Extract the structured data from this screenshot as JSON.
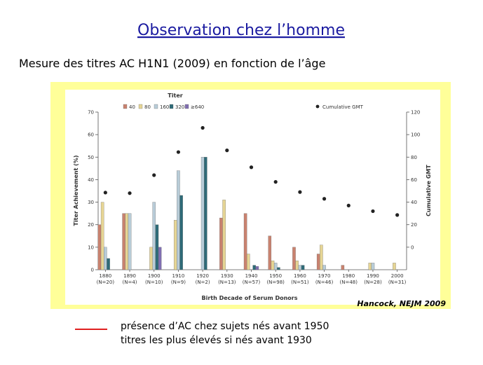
{
  "slide": {
    "title": "Observation chez l’homme",
    "subtitle": "Mesure des titres AC  H1N1 (2009) en fonction de l’âge",
    "citation": "Hancock, NEJM 2009",
    "notes": [
      "présence d’AC chez sujets nés avant 1950",
      "titres  les plus élevés si nés avant 1930"
    ]
  },
  "chart_data": {
    "type": "bar",
    "legend_title": "Titer",
    "x_label": "Birth Decade of Serum Donors",
    "y_label": "Titer Achievement (%)",
    "y2_label": "Cumulative GMT",
    "categories": [
      "1880",
      "1890",
      "1900",
      "1910",
      "1920",
      "1930",
      "1940",
      "1950",
      "1960",
      "1970",
      "1980",
      "1990",
      "2000"
    ],
    "category_counts": [
      "(N=20)",
      "(N=4)",
      "(N=10)",
      "(N=9)",
      "(N=2)",
      "(N=13)",
      "(N=57)",
      "(N=98)",
      "(N=51)",
      "(N=46)",
      "(N=48)",
      "(N=28)",
      "(N=31)"
    ],
    "series": [
      {
        "name": "40",
        "color": "#c9826f",
        "values": [
          20,
          25,
          0,
          0,
          0,
          23,
          25,
          15,
          10,
          7,
          2,
          0,
          0
        ]
      },
      {
        "name": "80",
        "color": "#e6d594",
        "values": [
          30,
          25,
          10,
          22,
          0,
          31,
          7,
          4,
          4,
          11,
          0,
          3,
          3
        ]
      },
      {
        "name": "160",
        "color": "#b8ccd8",
        "values": [
          10,
          25,
          30,
          44,
          50,
          0,
          0,
          3,
          2,
          2,
          0,
          3,
          0
        ]
      },
      {
        "name": "320",
        "color": "#2e6b78",
        "values": [
          5,
          0,
          20,
          33,
          50,
          0,
          2,
          1,
          2,
          0,
          0,
          0,
          0
        ]
      },
      {
        "name": "≥640",
        "color": "#7f6eb0",
        "values": [
          0,
          0,
          10,
          0,
          0,
          0,
          1.5,
          0,
          0,
          0,
          0,
          0,
          0
        ]
      },
      {
        "name": "Cumulative GMT",
        "color": "#222222",
        "axis": "y2",
        "values": [
          48.5,
          48,
          64,
          84.5,
          106,
          86,
          71,
          58,
          49,
          43,
          37,
          32,
          28.6
        ]
      }
    ],
    "ylim": [
      0,
      70
    ],
    "yticks": [
      0,
      10,
      20,
      30,
      40,
      50,
      60,
      70
    ],
    "y2lim": [
      -20,
      120
    ],
    "y2ticks": [
      0,
      20,
      40,
      60,
      80,
      100,
      120
    ]
  }
}
